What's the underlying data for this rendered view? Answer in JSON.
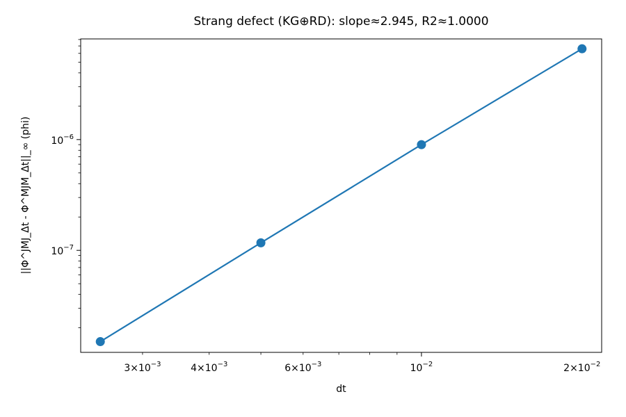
{
  "chart_data": {
    "type": "line",
    "title": "Strang defect (KG⊕RD): slope≈2.945, R2≈1.0000",
    "xlabel": "dt",
    "ylabel": "||Φ^JMJ_Δt - Φ^MJM_Δt||_∞ (phi)",
    "xscale": "log",
    "yscale": "log",
    "xlim": [
      0.002297,
      0.021768
    ],
    "ylim": [
      1.2e-08,
      8.1e-06
    ],
    "grid": false,
    "color": "#1f77b4",
    "x": [
      0.0025,
      0.005,
      0.01,
      0.02
    ],
    "series": [
      {
        "values": [
          1.5e-08,
          1.17e-07,
          9e-07,
          6.6e-06
        ]
      }
    ],
    "x_ticks": [
      {
        "value": 0.003,
        "mantissa": "3",
        "exp": "−3"
      },
      {
        "value": 0.004,
        "mantissa": "4",
        "exp": "−3"
      },
      {
        "value": 0.006,
        "mantissa": "6",
        "exp": "−3"
      },
      {
        "value": 0.01,
        "mantissa": "",
        "exp": "−2"
      },
      {
        "value": 0.02,
        "mantissa": "2",
        "exp": "−2"
      }
    ],
    "y_ticks": [
      {
        "value": 1e-07,
        "mantissa": "",
        "exp": "−7"
      },
      {
        "value": 1e-06,
        "mantissa": "",
        "exp": "−6"
      }
    ]
  }
}
